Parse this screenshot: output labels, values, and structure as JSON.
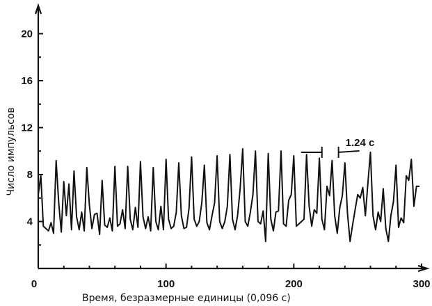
{
  "chart_data": {
    "type": "line",
    "title": "",
    "xlabel": "Время, безразмерные единицы  (0,096 с)",
    "ylabel": "Число импульсов",
    "xlim": [
      0,
      310
    ],
    "ylim": [
      0,
      21
    ],
    "xticks": [
      0,
      100,
      200,
      300
    ],
    "yticks": [
      4,
      8,
      12,
      16,
      20
    ],
    "ytick_labels": [
      "4",
      "8",
      "12",
      "16",
      "20"
    ],
    "grid": false,
    "annotation": {
      "text": "1.24 с",
      "x_from": 222,
      "x_to": 235,
      "y": 9.9
    },
    "series": [
      {
        "x": [
          0,
          2,
          4,
          6,
          8,
          10,
          12,
          14,
          16,
          18,
          20,
          22,
          24,
          26,
          28,
          30,
          32,
          34,
          36,
          38,
          40,
          42,
          44,
          46,
          48,
          50,
          52,
          54,
          56,
          58,
          60,
          62,
          64,
          66,
          68,
          70,
          72,
          74,
          76,
          78,
          80,
          82,
          84,
          86,
          88,
          90,
          92,
          94,
          96,
          98,
          100,
          102,
          104,
          106,
          108,
          110,
          112,
          114,
          116,
          118,
          120,
          122,
          124,
          126,
          128,
          130,
          132,
          134,
          136,
          138,
          140,
          142,
          144,
          146,
          148,
          150,
          152,
          154,
          156,
          158,
          160,
          162,
          164,
          166,
          168,
          170,
          172,
          174,
          176,
          178,
          180,
          182,
          184,
          186,
          188,
          190,
          192,
          194,
          196,
          198,
          200,
          202,
          204,
          206,
          208,
          210,
          212,
          214,
          216,
          218,
          220,
          222,
          224,
          226,
          228,
          230,
          232,
          234,
          236,
          238,
          240,
          242,
          244,
          246,
          248,
          250,
          252,
          254,
          256,
          258,
          260,
          262,
          264,
          266,
          268,
          270,
          272,
          274,
          276,
          278,
          280,
          282,
          284,
          286,
          288,
          290,
          292,
          294,
          296,
          298
        ],
        "y": [
          6.3,
          7.9,
          3.6,
          3.4,
          3.2,
          3.9,
          3.0,
          9.2,
          5.6,
          3.1,
          7.4,
          4.5,
          7.2,
          3.3,
          8.3,
          4.4,
          3.3,
          4.8,
          3.2,
          8.6,
          5.4,
          3.4,
          4.6,
          4.7,
          2.9,
          7.5,
          3.7,
          3.5,
          4.3,
          3.2,
          8.7,
          3.6,
          3.8,
          5.0,
          3.4,
          8.7,
          4.2,
          3.3,
          5.2,
          3.5,
          9.1,
          4.4,
          3.4,
          4.4,
          3.2,
          8.6,
          4.0,
          3.3,
          5.3,
          3.3,
          9.3,
          4.2,
          3.4,
          3.6,
          4.8,
          9.0,
          4.5,
          3.4,
          3.5,
          5.1,
          9.5,
          4.2,
          3.6,
          4.0,
          5.6,
          8.8,
          3.9,
          3.3,
          4.5,
          5.6,
          9.6,
          4.0,
          3.4,
          4.0,
          5.3,
          9.7,
          4.2,
          3.3,
          4.5,
          6.8,
          10.2,
          4.0,
          3.6,
          4.8,
          6.3,
          10.0,
          4.0,
          3.8,
          4.9,
          2.3,
          9.8,
          4.2,
          3.2,
          4.8,
          4.9,
          10.0,
          3.8,
          3.6,
          5.8,
          6.3,
          9.6,
          3.6,
          3.8,
          4.0,
          4.2,
          9.7,
          5.3,
          3.6,
          5.0,
          4.7,
          9.4,
          4.2,
          3.3,
          7.0,
          6.2,
          9.2,
          4.5,
          3.0,
          5.2,
          6.2,
          9.0,
          4.7,
          2.3,
          3.7,
          5.0,
          6.3,
          6.0,
          6.9,
          4.5,
          7.3,
          9.9,
          4.5,
          3.3,
          4.8,
          4.0,
          6.8,
          3.4,
          2.3,
          4.5,
          5.7,
          8.8,
          3.5,
          4.3,
          3.9,
          7.9,
          7.5,
          9.3,
          5.3,
          7.0,
          7.0
        ]
      }
    ]
  }
}
